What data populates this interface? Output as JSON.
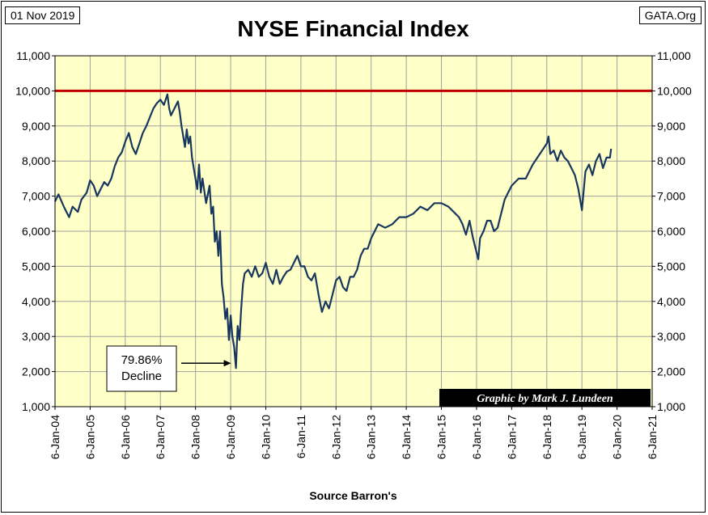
{
  "header": {
    "date": "01 Nov 2019",
    "site": "GATA.Org",
    "title": "NYSE Financial Index"
  },
  "footer": {
    "source": "Source Barron's"
  },
  "credit": "Graphic by Mark J. Lundeen",
  "colors": {
    "plot_bg": "#FFFFC8",
    "grid": "#A0A0A0",
    "line": "#17375E",
    "reference": "#C00000"
  },
  "chart_data": {
    "type": "line",
    "title": "NYSE Financial Index",
    "xlabel": "Source Barron's",
    "ylabel": "",
    "ylim": [
      1000,
      11000
    ],
    "yticks": [
      "1,000",
      "2,000",
      "3,000",
      "4,000",
      "5,000",
      "6,000",
      "7,000",
      "8,000",
      "9,000",
      "10,000",
      "11,000"
    ],
    "xlim": [
      2004,
      2021
    ],
    "xticks": [
      "6-Jan-04",
      "6-Jan-05",
      "6-Jan-06",
      "6-Jan-07",
      "6-Jan-08",
      "6-Jan-09",
      "6-Jan-10",
      "6-Jan-11",
      "6-Jan-12",
      "6-Jan-13",
      "6-Jan-14",
      "6-Jan-15",
      "6-Jan-16",
      "6-Jan-17",
      "6-Jan-18",
      "6-Jan-19",
      "6-Jan-20",
      "6-Jan-21"
    ],
    "grid": true,
    "reference_line": {
      "y": 10000
    },
    "annotation": {
      "lines": [
        "79.86%",
        "Decline"
      ],
      "target_x": 2009.15,
      "target_y": 2100
    },
    "series": [
      {
        "x": [
          2004.0,
          2004.1,
          2004.25,
          2004.4,
          2004.5,
          2004.65,
          2004.75,
          2004.9,
          2005.0,
          2005.1,
          2005.2,
          2005.3,
          2005.4,
          2005.5,
          2005.6,
          2005.7,
          2005.8,
          2005.9,
          2006.0,
          2006.1,
          2006.2,
          2006.3,
          2006.4,
          2006.5,
          2006.6,
          2006.7,
          2006.8,
          2006.9,
          2007.0,
          2007.1,
          2007.2,
          2007.25,
          2007.3,
          2007.4,
          2007.5,
          2007.55,
          2007.6,
          2007.65,
          2007.7,
          2007.75,
          2007.8,
          2007.85,
          2007.9,
          2008.0,
          2008.05,
          2008.1,
          2008.15,
          2008.2,
          2008.3,
          2008.4,
          2008.45,
          2008.5,
          2008.55,
          2008.6,
          2008.65,
          2008.7,
          2008.75,
          2008.8,
          2008.85,
          2008.9,
          2008.95,
          2009.0,
          2009.05,
          2009.1,
          2009.15,
          2009.2,
          2009.25,
          2009.3,
          2009.35,
          2009.4,
          2009.5,
          2009.6,
          2009.7,
          2009.8,
          2009.9,
          2010.0,
          2010.1,
          2010.2,
          2010.3,
          2010.4,
          2010.5,
          2010.6,
          2010.7,
          2010.8,
          2010.9,
          2011.0,
          2011.1,
          2011.2,
          2011.3,
          2011.4,
          2011.5,
          2011.6,
          2011.7,
          2011.8,
          2011.9,
          2012.0,
          2012.1,
          2012.2,
          2012.3,
          2012.4,
          2012.5,
          2012.6,
          2012.7,
          2012.8,
          2012.9,
          2013.0,
          2013.2,
          2013.4,
          2013.6,
          2013.8,
          2014.0,
          2014.2,
          2014.4,
          2014.6,
          2014.8,
          2015.0,
          2015.2,
          2015.4,
          2015.5,
          2015.6,
          2015.7,
          2015.8,
          2015.9,
          2016.0,
          2016.05,
          2016.1,
          2016.2,
          2016.3,
          2016.4,
          2016.5,
          2016.6,
          2016.7,
          2016.8,
          2016.9,
          2017.0,
          2017.2,
          2017.4,
          2017.6,
          2017.8,
          2018.0,
          2018.05,
          2018.1,
          2018.2,
          2018.3,
          2018.4,
          2018.5,
          2018.6,
          2018.7,
          2018.8,
          2018.9,
          2018.95,
          2019.0,
          2019.1,
          2019.2,
          2019.3,
          2019.4,
          2019.5,
          2019.6,
          2019.7,
          2019.8,
          2019.83
        ],
        "y": [
          6850,
          7050,
          6700,
          6400,
          6700,
          6550,
          6900,
          7100,
          7450,
          7300,
          7000,
          7200,
          7400,
          7300,
          7500,
          7850,
          8100,
          8250,
          8550,
          8800,
          8400,
          8200,
          8500,
          8800,
          9000,
          9250,
          9500,
          9650,
          9750,
          9600,
          9900,
          9500,
          9300,
          9500,
          9700,
          9400,
          9000,
          8700,
          8400,
          8900,
          8500,
          8700,
          8100,
          7500,
          7200,
          7900,
          7100,
          7500,
          6800,
          7300,
          6500,
          6700,
          5700,
          6000,
          5300,
          6000,
          4500,
          4100,
          3500,
          3800,
          2900,
          3600,
          3000,
          2700,
          2100,
          3300,
          2900,
          3800,
          4500,
          4800,
          4900,
          4700,
          5000,
          4700,
          4800,
          5100,
          4700,
          4500,
          4900,
          4500,
          4700,
          4850,
          4900,
          5100,
          5300,
          5000,
          5000,
          4700,
          4600,
          4800,
          4200,
          3700,
          4000,
          3800,
          4200,
          4600,
          4700,
          4400,
          4300,
          4700,
          4700,
          4900,
          5300,
          5500,
          5500,
          5800,
          6200,
          6100,
          6200,
          6400,
          6400,
          6500,
          6700,
          6600,
          6800,
          6800,
          6700,
          6500,
          6400,
          6200,
          5900,
          6300,
          5800,
          5400,
          5200,
          5800,
          6000,
          6300,
          6300,
          6000,
          6100,
          6500,
          6900,
          7100,
          7300,
          7500,
          7500,
          7900,
          8200,
          8500,
          8700,
          8200,
          8300,
          8000,
          8300,
          8100,
          8000,
          7800,
          7600,
          7200,
          6900,
          6600,
          7700,
          7900,
          7600,
          8000,
          8200,
          7800,
          8100,
          8100,
          8350
        ]
      }
    ]
  }
}
